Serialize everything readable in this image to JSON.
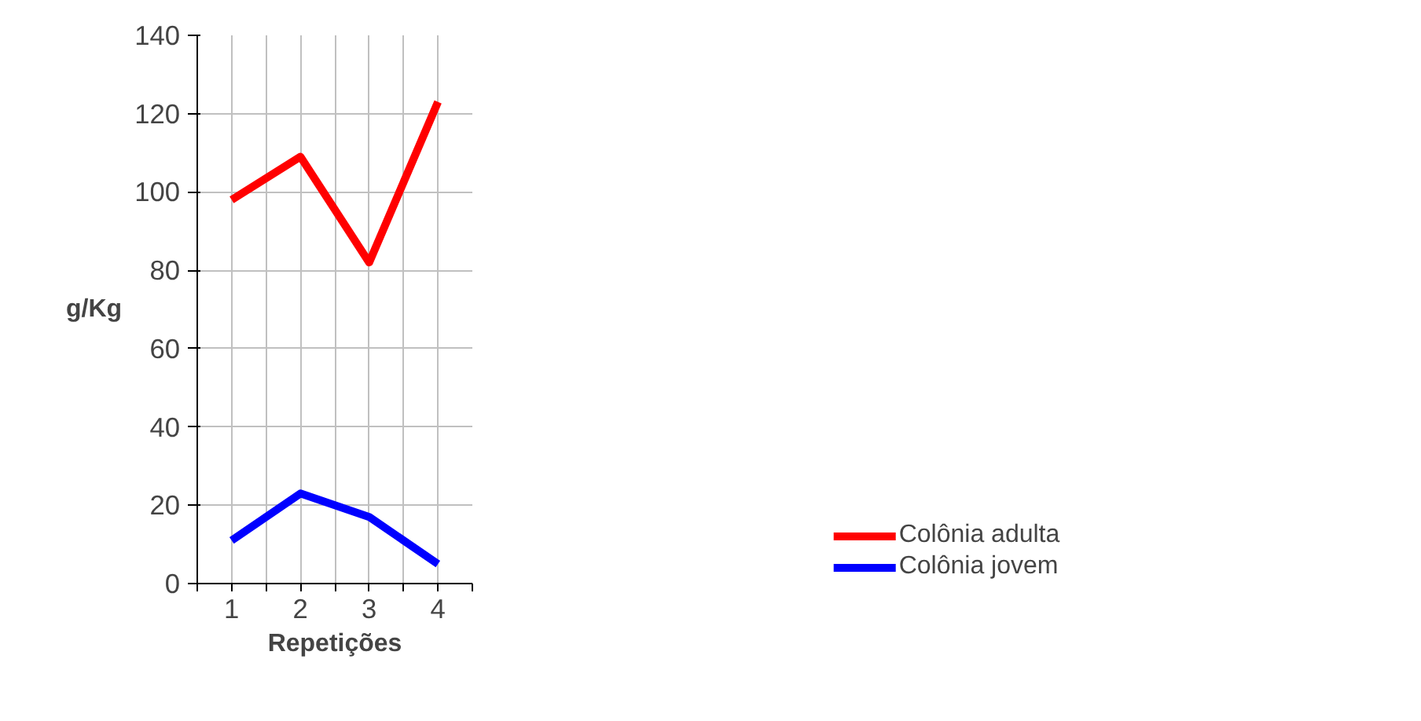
{
  "chart_data": {
    "type": "line",
    "xlabel": "Repetições",
    "ylabel": "g/Kg",
    "categories": [
      "1",
      "2",
      "3",
      "4"
    ],
    "series": [
      {
        "name": "Colônia adulta",
        "color": "#ff0000",
        "values": [
          98,
          109,
          82,
          123
        ]
      },
      {
        "name": "Colônia jovem",
        "color": "#0000ff",
        "values": [
          11,
          23,
          17,
          5
        ]
      }
    ],
    "ylim": [
      0,
      140
    ],
    "yticks": [
      0,
      20,
      40,
      60,
      80,
      100,
      120,
      140
    ],
    "grid": true,
    "legend": "bottom right",
    "marker": "none",
    "line_style": "solid"
  }
}
